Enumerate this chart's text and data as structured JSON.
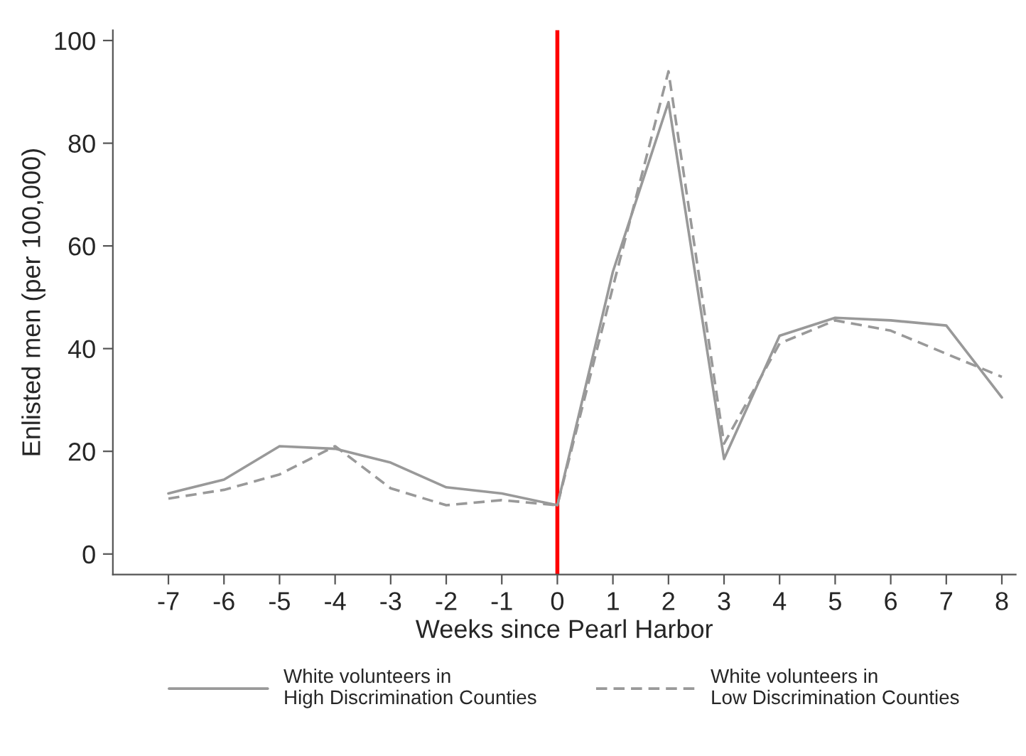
{
  "chart_data": {
    "type": "line",
    "xlabel": "Weeks since Pearl Harbor",
    "ylabel": "Enlisted men (per 100,000)",
    "x": [
      -7,
      -6,
      -5,
      -4,
      -3,
      -2,
      -1,
      0,
      1,
      2,
      3,
      4,
      5,
      6,
      7,
      8
    ],
    "series": [
      {
        "name": "White volunteers in\nHigh Discrimination Counties",
        "color": "#999999",
        "line_style": "solid",
        "values": [
          11.8,
          14.5,
          21,
          20.5,
          17.8,
          13,
          11.8,
          9.5,
          55,
          88,
          18.5,
          42.5,
          46,
          45.5,
          44.5,
          30.5
        ]
      },
      {
        "name": "White volunteers in\nLow Discrimination Counties",
        "color": "#999999",
        "line_style": "dashed",
        "values": [
          10.8,
          12.5,
          15.5,
          21,
          12.8,
          9.5,
          10.5,
          9.5,
          52,
          94,
          21.5,
          41,
          45.5,
          43.5,
          39,
          34.5
        ]
      }
    ],
    "xlim": [
      -8,
      8.25
    ],
    "xticks": [
      -7,
      -6,
      -5,
      -4,
      -3,
      -2,
      -1,
      0,
      1,
      2,
      3,
      4,
      5,
      6,
      7,
      8
    ],
    "ylim": [
      -4,
      102
    ],
    "yticks": [
      0,
      20,
      40,
      60,
      80,
      100
    ],
    "ref_lines": [
      {
        "axis": "x",
        "value": 0,
        "color": "#ff0000",
        "line_style": "solid"
      }
    ],
    "grid": false,
    "legend": "bottom",
    "marker": "none"
  }
}
